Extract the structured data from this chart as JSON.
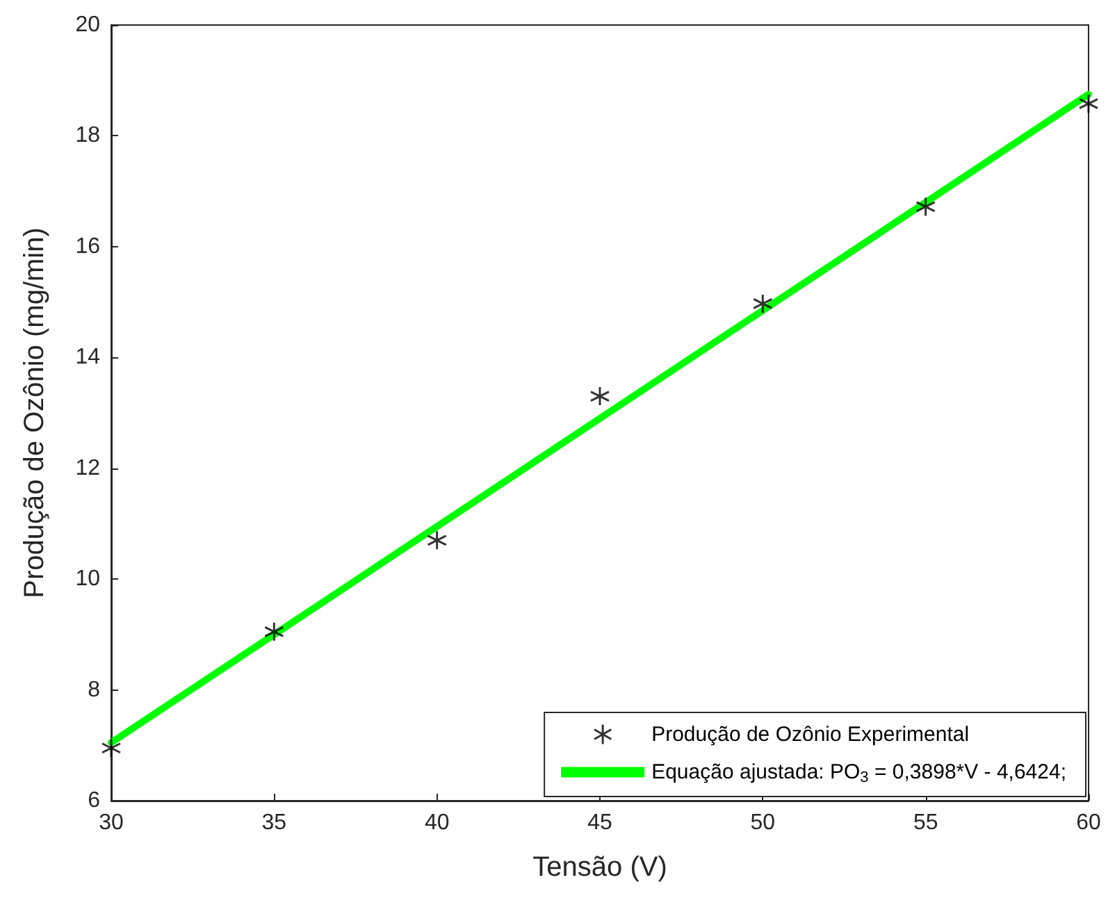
{
  "chart_data": {
    "type": "scatter",
    "xlabel": "Tensão (V)",
    "ylabel": "Produção de Ozônio (mg/min)",
    "x": [
      30,
      35,
      40,
      45,
      50,
      55,
      60
    ],
    "series": [
      {
        "name": "Produção de Ozônio Experimental",
        "color": "#000000",
        "marker": "cross",
        "values": [
          6.95,
          9.05,
          10.7,
          13.3,
          14.97,
          16.72,
          18.58
        ]
      },
      {
        "name": "Equação ajustada: PO$_{3}$ = 0,3898*V - 4,6424;",
        "type": "line",
        "color": "#00ff00",
        "line_style": "solid",
        "marker": "none",
        "x": [
          30,
          60
        ],
        "values": [
          7.05,
          18.75
        ]
      }
    ],
    "xlim": [
      30,
      60
    ],
    "xticks": [
      30,
      35,
      40,
      45,
      50,
      55,
      60
    ],
    "ylim": [
      6,
      20
    ],
    "yticks": [
      6,
      8,
      10,
      12,
      14,
      16,
      18,
      20
    ],
    "grid": false,
    "legend": "bottom right"
  }
}
